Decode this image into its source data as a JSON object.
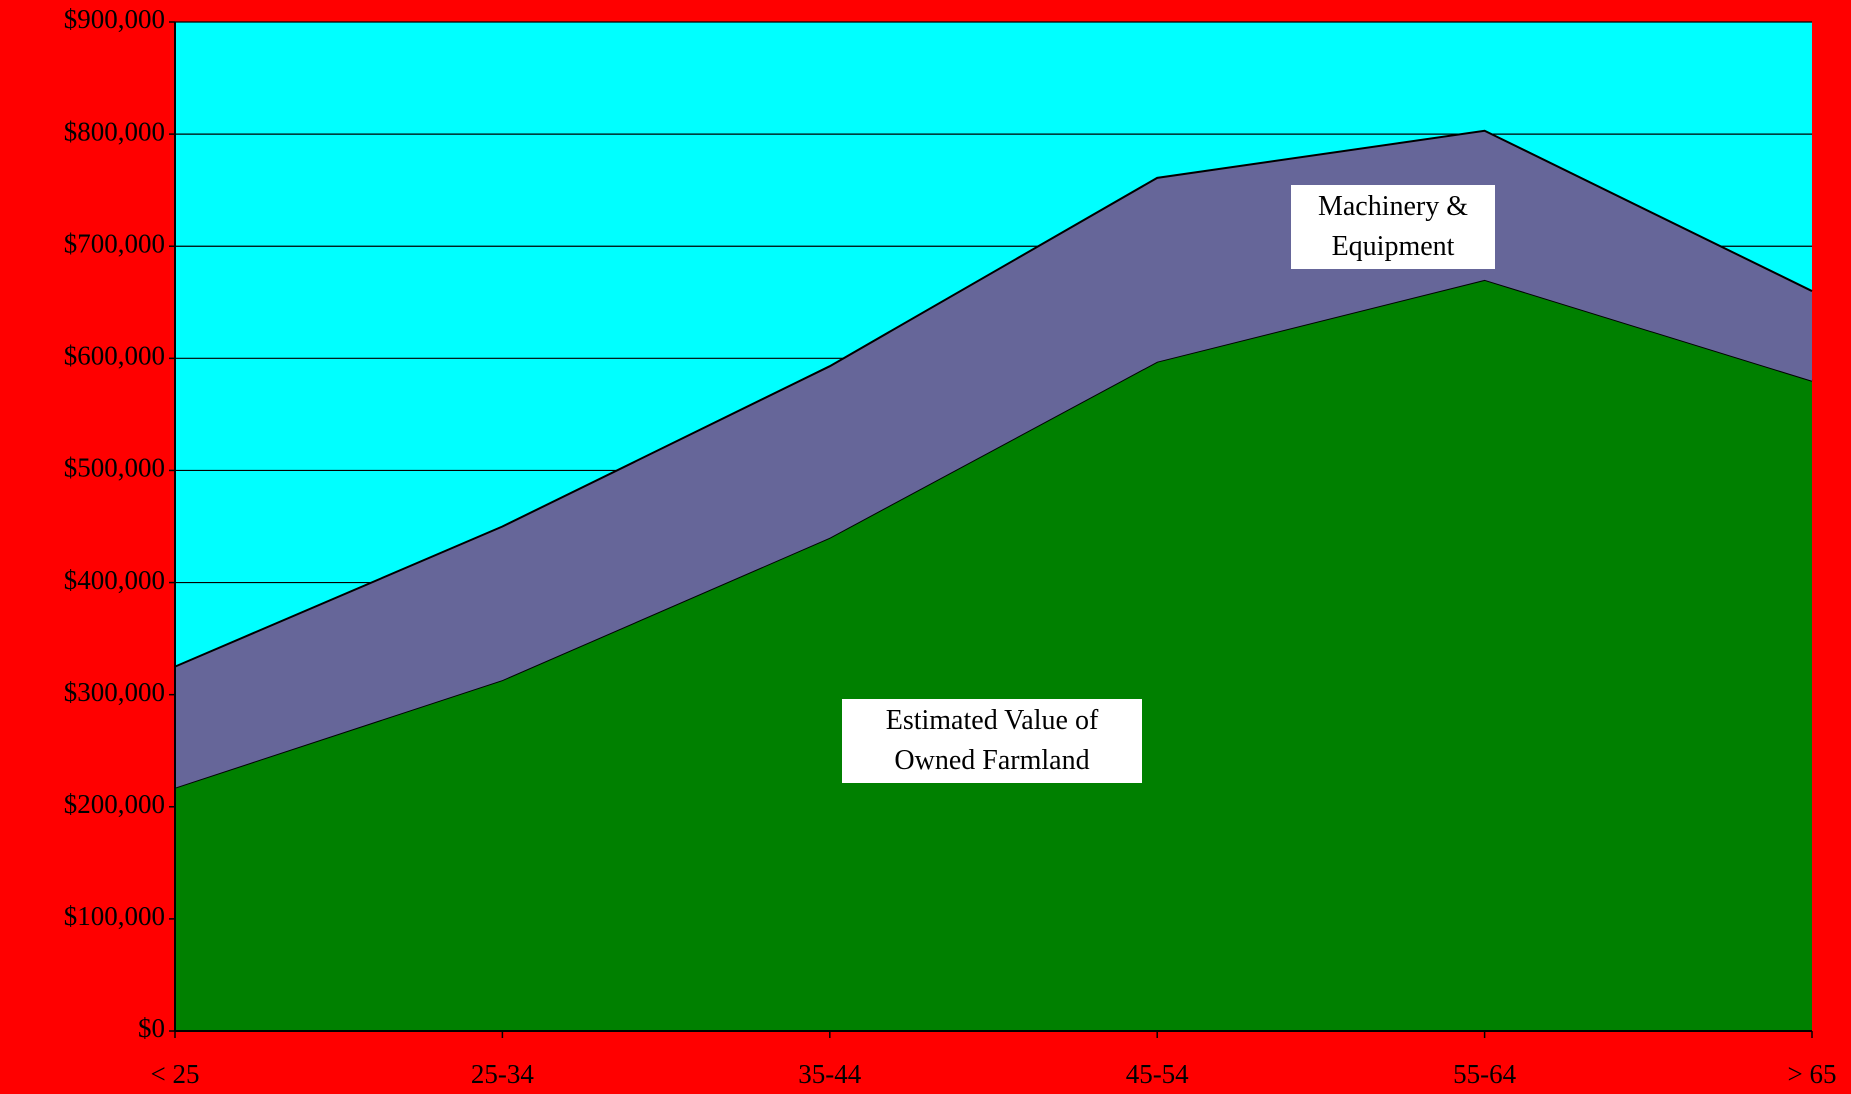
{
  "chart_data": {
    "type": "area",
    "stacked": true,
    "categories": [
      "< 25",
      "25-34",
      "35-44",
      "45-54",
      "55-64",
      "> 65"
    ],
    "series": [
      {
        "name": "Estimated Value of Owned Farmland",
        "color": "#008000",
        "values": [
          217000,
          313000,
          440000,
          597000,
          670000,
          580000
        ]
      },
      {
        "name": "Machinery & Equipment",
        "color": "#666699",
        "values": [
          108000,
          137000,
          153000,
          164000,
          133000,
          80000
        ]
      }
    ],
    "ylim": [
      0,
      900000
    ],
    "yticks": [
      {
        "value": 0,
        "label": "$0"
      },
      {
        "value": 100000,
        "label": "$100,000"
      },
      {
        "value": 200000,
        "label": "$200,000"
      },
      {
        "value": 300000,
        "label": "$300,000"
      },
      {
        "value": 400000,
        "label": "$400,000"
      },
      {
        "value": 500000,
        "label": "$500,000"
      },
      {
        "value": 600000,
        "label": "$600,000"
      },
      {
        "value": 700000,
        "label": "$700,000"
      },
      {
        "value": 800000,
        "label": "$800,000"
      },
      {
        "value": 900000,
        "label": "$900,000"
      }
    ],
    "grid": true,
    "background": "#00ffff"
  }
}
